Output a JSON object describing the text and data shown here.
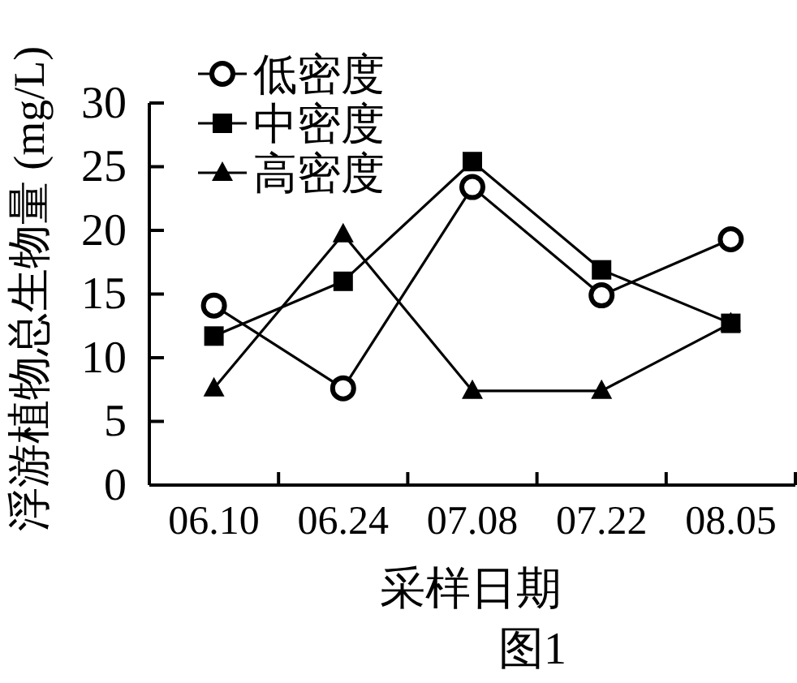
{
  "chart_data": {
    "type": "line",
    "categories": [
      "06.10",
      "06.24",
      "07.08",
      "07.22",
      "08.05"
    ],
    "xlabel": "采样日期",
    "ylabel": "浮游植物总生物量 (mg/L)",
    "ylim": [
      0,
      30
    ],
    "yticks": [
      0,
      5,
      10,
      15,
      20,
      25,
      30
    ],
    "legend": "top left",
    "line_style": "solid",
    "series": [
      {
        "name": "低密度",
        "color": "#000000",
        "marker": "circle",
        "values": [
          14.1,
          7.6,
          23.4,
          14.9,
          19.3
        ]
      },
      {
        "name": "中密度",
        "color": "#000000",
        "marker": "square",
        "values": [
          11.7,
          16.0,
          25.4,
          16.9,
          12.7
        ]
      },
      {
        "name": "高密度",
        "color": "#000000",
        "marker": "triangle",
        "values": [
          7.6,
          19.7,
          7.4,
          7.4,
          12.7
        ]
      }
    ],
    "annotations": [
      "图1"
    ]
  }
}
